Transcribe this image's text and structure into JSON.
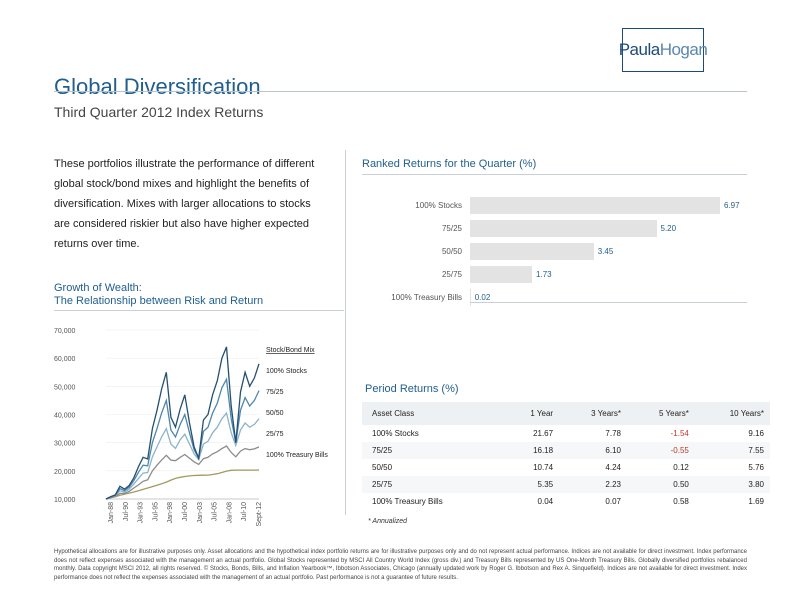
{
  "logo": {
    "part1": "Paula",
    "part2": "Hogan"
  },
  "header": {
    "title": "Global Diversification",
    "subtitle": "Third Quarter 2012 Index Returns"
  },
  "intro": {
    "text": "These portfolios illustrate the performance of different global stock/bond mixes and highlight the benefits of diversification. Mixes with larger allocations to stocks are considered riskier but also have higher expected returns over time."
  },
  "growth": {
    "title_line1": "Growth of Wealth:",
    "title_line2": "The Relationship between Risk and Return"
  },
  "ranked": {
    "title": "Ranked Returns for the Quarter (%)",
    "items": [
      {
        "label": "100% Stocks",
        "value": "6.97",
        "num": 6.97
      },
      {
        "label": "75/25",
        "value": "5.20",
        "num": 5.2
      },
      {
        "label": "50/50",
        "value": "3.45",
        "num": 3.45
      },
      {
        "label": "25/75",
        "value": "1.73",
        "num": 1.73
      },
      {
        "label": "100% Treasury Bills",
        "value": "0.02",
        "num": 0.02
      }
    ]
  },
  "period": {
    "title": "Period Returns (%)",
    "headers": [
      "Asset Class",
      "1 Year",
      "3 Years*",
      "5 Years*",
      "10 Years*"
    ],
    "rows": [
      [
        "100% Stocks",
        "21.67",
        "7.78",
        "-1.54",
        "9.16"
      ],
      [
        "75/25",
        "16.18",
        "6.10",
        "-0.55",
        "7.55"
      ],
      [
        "50/50",
        "10.74",
        "4.24",
        "0.12",
        "5.76"
      ],
      [
        "25/75",
        "5.35",
        "2.23",
        "0.50",
        "3.80"
      ],
      [
        "100% Treasury Bills",
        "0.04",
        "0.07",
        "0.58",
        "1.69"
      ]
    ],
    "annualized_note": "* Annualized",
    "negative_color": "#c0392b"
  },
  "chart_data": {
    "type": "line",
    "title": "Growth of Wealth: The Relationship between Risk and Return",
    "ylim": [
      10000,
      70000
    ],
    "y_ticks": [
      "70,000",
      "60,000",
      "50,000",
      "40,000",
      "30,000",
      "20,000",
      "10,000"
    ],
    "x_ticks": [
      "Jan-88",
      "Jul-90",
      "Jan-93",
      "Jul-95",
      "Jan-98",
      "Jul-00",
      "Jan-03",
      "Jul-05",
      "Jan-08",
      "Jul-10",
      "Sept-12"
    ],
    "legend_title": "Stock/Bond Mix",
    "series": [
      {
        "name": "100% Stocks",
        "color": "#24506f",
        "values": [
          10000,
          10800,
          11500,
          14500,
          13500,
          14800,
          17500,
          21500,
          24800,
          24200,
          35000,
          41500,
          49000,
          55000,
          39000,
          35500,
          42000,
          47000,
          37000,
          28500,
          24500,
          38000,
          40000,
          47000,
          52000,
          60000,
          64000,
          43000,
          30000,
          48000,
          55000,
          50000,
          53000,
          58000
        ]
      },
      {
        "name": "75/25",
        "color": "#4d86ad",
        "values": [
          10000,
          10700,
          11300,
          13700,
          13000,
          14200,
          16500,
          19500,
          22000,
          21800,
          30000,
          35000,
          40500,
          45000,
          34500,
          32000,
          36500,
          40000,
          33500,
          27500,
          24500,
          34000,
          35500,
          40500,
          44000,
          49500,
          52500,
          38500,
          30000,
          41500,
          46000,
          43000,
          45000,
          48500
        ]
      },
      {
        "name": "50/50",
        "color": "#8bb3cc",
        "values": [
          10000,
          10600,
          11200,
          12900,
          12500,
          13500,
          15300,
          17300,
          19200,
          19400,
          25000,
          28500,
          32000,
          35000,
          29500,
          28000,
          31000,
          33000,
          29500,
          26000,
          24000,
          29500,
          30500,
          33500,
          35500,
          38500,
          40500,
          33500,
          29000,
          34500,
          37000,
          35500,
          36500,
          38500
        ]
      },
      {
        "name": "25/75",
        "color": "#8c8c8c",
        "values": [
          10000,
          10500,
          11000,
          12000,
          12000,
          12700,
          13900,
          15000,
          16300,
          16800,
          20000,
          22000,
          23800,
          25500,
          23800,
          23600,
          24800,
          25800,
          24500,
          23200,
          22300,
          24300,
          24800,
          26000,
          26800,
          27900,
          28800,
          26500,
          25000,
          27000,
          27900,
          27500,
          27800,
          28500
        ]
      },
      {
        "name": "100% Treasury Bills",
        "color": "#a39a5e",
        "values": [
          10000,
          10400,
          10800,
          11300,
          11700,
          12100,
          12500,
          12900,
          13400,
          13900,
          14400,
          14900,
          15400,
          16000,
          16700,
          17300,
          17700,
          18000,
          18200,
          18350,
          18400,
          18450,
          18500,
          18700,
          19000,
          19400,
          19900,
          20200,
          20250,
          20250,
          20260,
          20260,
          20270,
          20280
        ]
      }
    ]
  },
  "footnotes": {
    "text": "Hypothetical allocations are for illustrative purposes only. Asset allocations and the hypothetical index portfolio returns are for illustrative purposes only and do not represent actual performance. Indices are not available for direct investment. Index performance does not reflect expenses associated with the management an actual portfolio. Global Stocks represented by MSCI All Country World Index (gross div.) and Treasury Bills represented by US One-Month Treasury Bills. Globally diversified portfolios rebalanced monthly. Data copyright MSCI 2012, all rights reserved. © Stocks, Bonds, Bills, and Inflation Yearbook™, Ibbotson Associates, Chicago (annually updated work by Roger G. Ibbotson and Rex A. Sinquefield). Indices are not available for direct investment. Index performance does not reflect the expenses associated with the management of an actual portfolio. Past performance is not a guarantee of future results."
  }
}
